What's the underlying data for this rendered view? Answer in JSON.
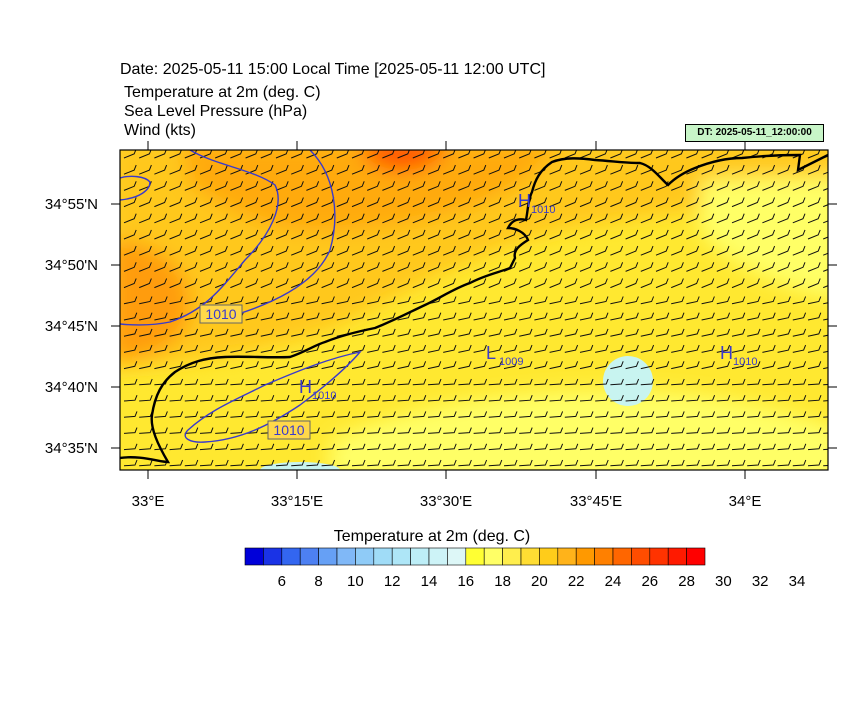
{
  "header": {
    "date_line": "Date: 2025-05-11  15:00 Local Time [2025-05-11  12:00 UTC]",
    "variables": [
      "Temperature at 2m   (deg. C)",
      "Sea Level Pressure   (hPa)",
      "Wind   (kts)"
    ],
    "dt_badge": "DT: 2025-05-11_12:00:00",
    "dt_badge_color": "#c8f5c8"
  },
  "map": {
    "lat_labels": [
      "34°55'N",
      "34°50'N",
      "34°45'N",
      "34°40'N",
      "34°35'N"
    ],
    "lon_labels": [
      "33°E",
      "33°15'E",
      "33°30'E",
      "33°45'E",
      "34°E"
    ],
    "pressure_centers": [
      {
        "type": "H",
        "value": "1010"
      },
      {
        "type": "H",
        "value": "1010"
      },
      {
        "type": "L",
        "value": "1009"
      },
      {
        "type": "H",
        "value": "1010"
      }
    ],
    "isobar_labels": [
      "1010",
      "1010"
    ],
    "isobar_color": "#3a3acc",
    "coast_color": "#000000"
  },
  "colorbar": {
    "title": "Temperature at 2m  (deg. C)",
    "tick_labels": [
      "6",
      "8",
      "10",
      "12",
      "14",
      "16",
      "18",
      "20",
      "22",
      "24",
      "26",
      "28",
      "30",
      "32",
      "34"
    ],
    "colors": [
      "#0000d9",
      "#1a33e6",
      "#3366f0",
      "#4d80f2",
      "#66a0f5",
      "#80b8f7",
      "#8fcbf7",
      "#a0dcf7",
      "#aee6f7",
      "#bdeef7",
      "#cdf3f7",
      "#ddf7f7",
      "#ffff33",
      "#ffff66",
      "#ffee4d",
      "#ffdd33",
      "#ffcc1a",
      "#ffb31a",
      "#ff9900",
      "#ff8000",
      "#ff6600",
      "#ff4d00",
      "#ff3300",
      "#ff1a00",
      "#ff0000"
    ]
  }
}
